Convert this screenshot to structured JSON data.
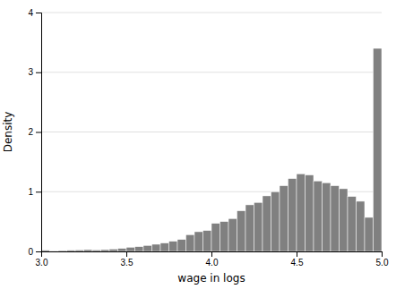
{
  "chart_data": {
    "type": "histogram",
    "xlabel": "wage in logs",
    "ylabel": "Density",
    "bins": [
      3.0,
      3.05,
      3.1,
      3.15,
      3.2,
      3.25,
      3.3,
      3.35,
      3.4,
      3.45,
      3.5,
      3.55,
      3.6,
      3.65,
      3.7,
      3.75,
      3.8,
      3.85,
      3.9,
      3.95,
      4.0,
      4.05,
      4.1,
      4.15,
      4.2,
      4.25,
      4.3,
      4.35,
      4.4,
      4.45,
      4.5,
      4.55,
      4.6,
      4.65,
      4.7,
      4.75,
      4.8,
      4.85,
      4.9,
      4.95,
      5.0
    ],
    "values": [
      0.02,
      0.01,
      0.015,
      0.02,
      0.025,
      0.03,
      0.025,
      0.03,
      0.04,
      0.05,
      0.07,
      0.08,
      0.1,
      0.12,
      0.14,
      0.17,
      0.2,
      0.28,
      0.33,
      0.35,
      0.47,
      0.5,
      0.55,
      0.68,
      0.78,
      0.82,
      0.93,
      1.0,
      1.1,
      1.22,
      1.3,
      1.28,
      1.18,
      1.15,
      1.1,
      1.05,
      0.92,
      0.84,
      0.57,
      3.4
    ],
    "color": "#808080",
    "xlim": [
      3.0,
      5.0
    ],
    "ylim": [
      0,
      4.0
    ],
    "xticks": [
      {
        "value": 3.0,
        "label": "3.0"
      },
      3.5,
      {
        "value": 4.0,
        "label": "4.0"
      },
      4.5,
      {
        "value": 5.0,
        "label": "5.0"
      }
    ],
    "yticks": [
      0,
      1,
      2,
      3,
      4
    ],
    "grid": true
  }
}
